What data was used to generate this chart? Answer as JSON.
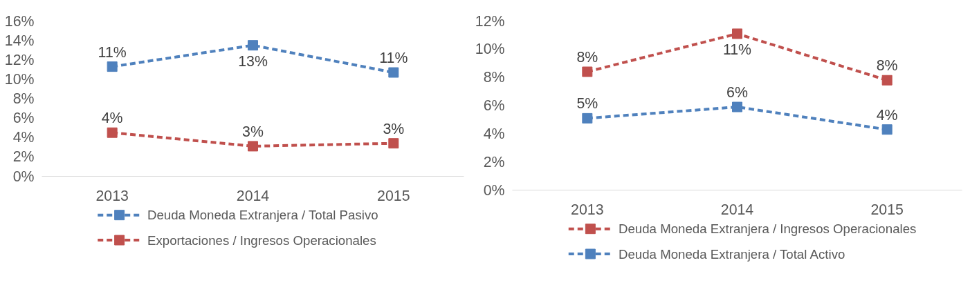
{
  "chart_data": [
    {
      "type": "line",
      "categories": [
        "2013",
        "2014",
        "2015"
      ],
      "ylim": [
        0,
        16
      ],
      "yticks": [
        {
          "value": 0,
          "label": "0%"
        },
        {
          "value": 2,
          "label": "2%"
        },
        {
          "value": 4,
          "label": "4%"
        },
        {
          "value": 6,
          "label": "6%"
        },
        {
          "value": 8,
          "label": "8%"
        },
        {
          "value": 10,
          "label": "10%"
        },
        {
          "value": 12,
          "label": "12%"
        },
        {
          "value": 14,
          "label": "14%"
        },
        {
          "value": 16,
          "label": "16%"
        }
      ],
      "marker": "square",
      "line_style": "dashed",
      "legend": "bottom",
      "series": [
        {
          "name": "Deuda Moneda Extranjera / Total Pasivo",
          "color": "#4f81bd",
          "values": [
            11.3,
            13.5,
            10.7
          ],
          "value_labels": [
            "11%",
            "13%",
            "11%"
          ]
        },
        {
          "name": "Exportaciones / Ingresos Operacionales",
          "color": "#c0504d",
          "values": [
            4.5,
            3.1,
            3.4
          ],
          "value_labels": [
            "4%",
            "3%",
            "3%"
          ]
        }
      ]
    },
    {
      "type": "line",
      "categories": [
        "2013",
        "2014",
        "2015"
      ],
      "ylim": [
        0,
        12
      ],
      "yticks": [
        {
          "value": 0,
          "label": "0%"
        },
        {
          "value": 2,
          "label": "2%"
        },
        {
          "value": 4,
          "label": "4%"
        },
        {
          "value": 6,
          "label": "6%"
        },
        {
          "value": 8,
          "label": "8%"
        },
        {
          "value": 10,
          "label": "10%"
        },
        {
          "value": 12,
          "label": "12%"
        }
      ],
      "marker": "square",
      "line_style": "dashed",
      "legend": "bottom",
      "series": [
        {
          "name": "Deuda Moneda Extranjera / Ingresos Operacionales",
          "color": "#c0504d",
          "values": [
            8.4,
            11.1,
            7.8
          ],
          "value_labels": [
            "8%",
            "11%",
            "8%"
          ]
        },
        {
          "name": "Deuda Moneda Extranjera / Total Activo",
          "color": "#4f81bd",
          "values": [
            5.1,
            5.9,
            4.3
          ],
          "value_labels": [
            "5%",
            "6%",
            "4%"
          ]
        }
      ]
    }
  ]
}
